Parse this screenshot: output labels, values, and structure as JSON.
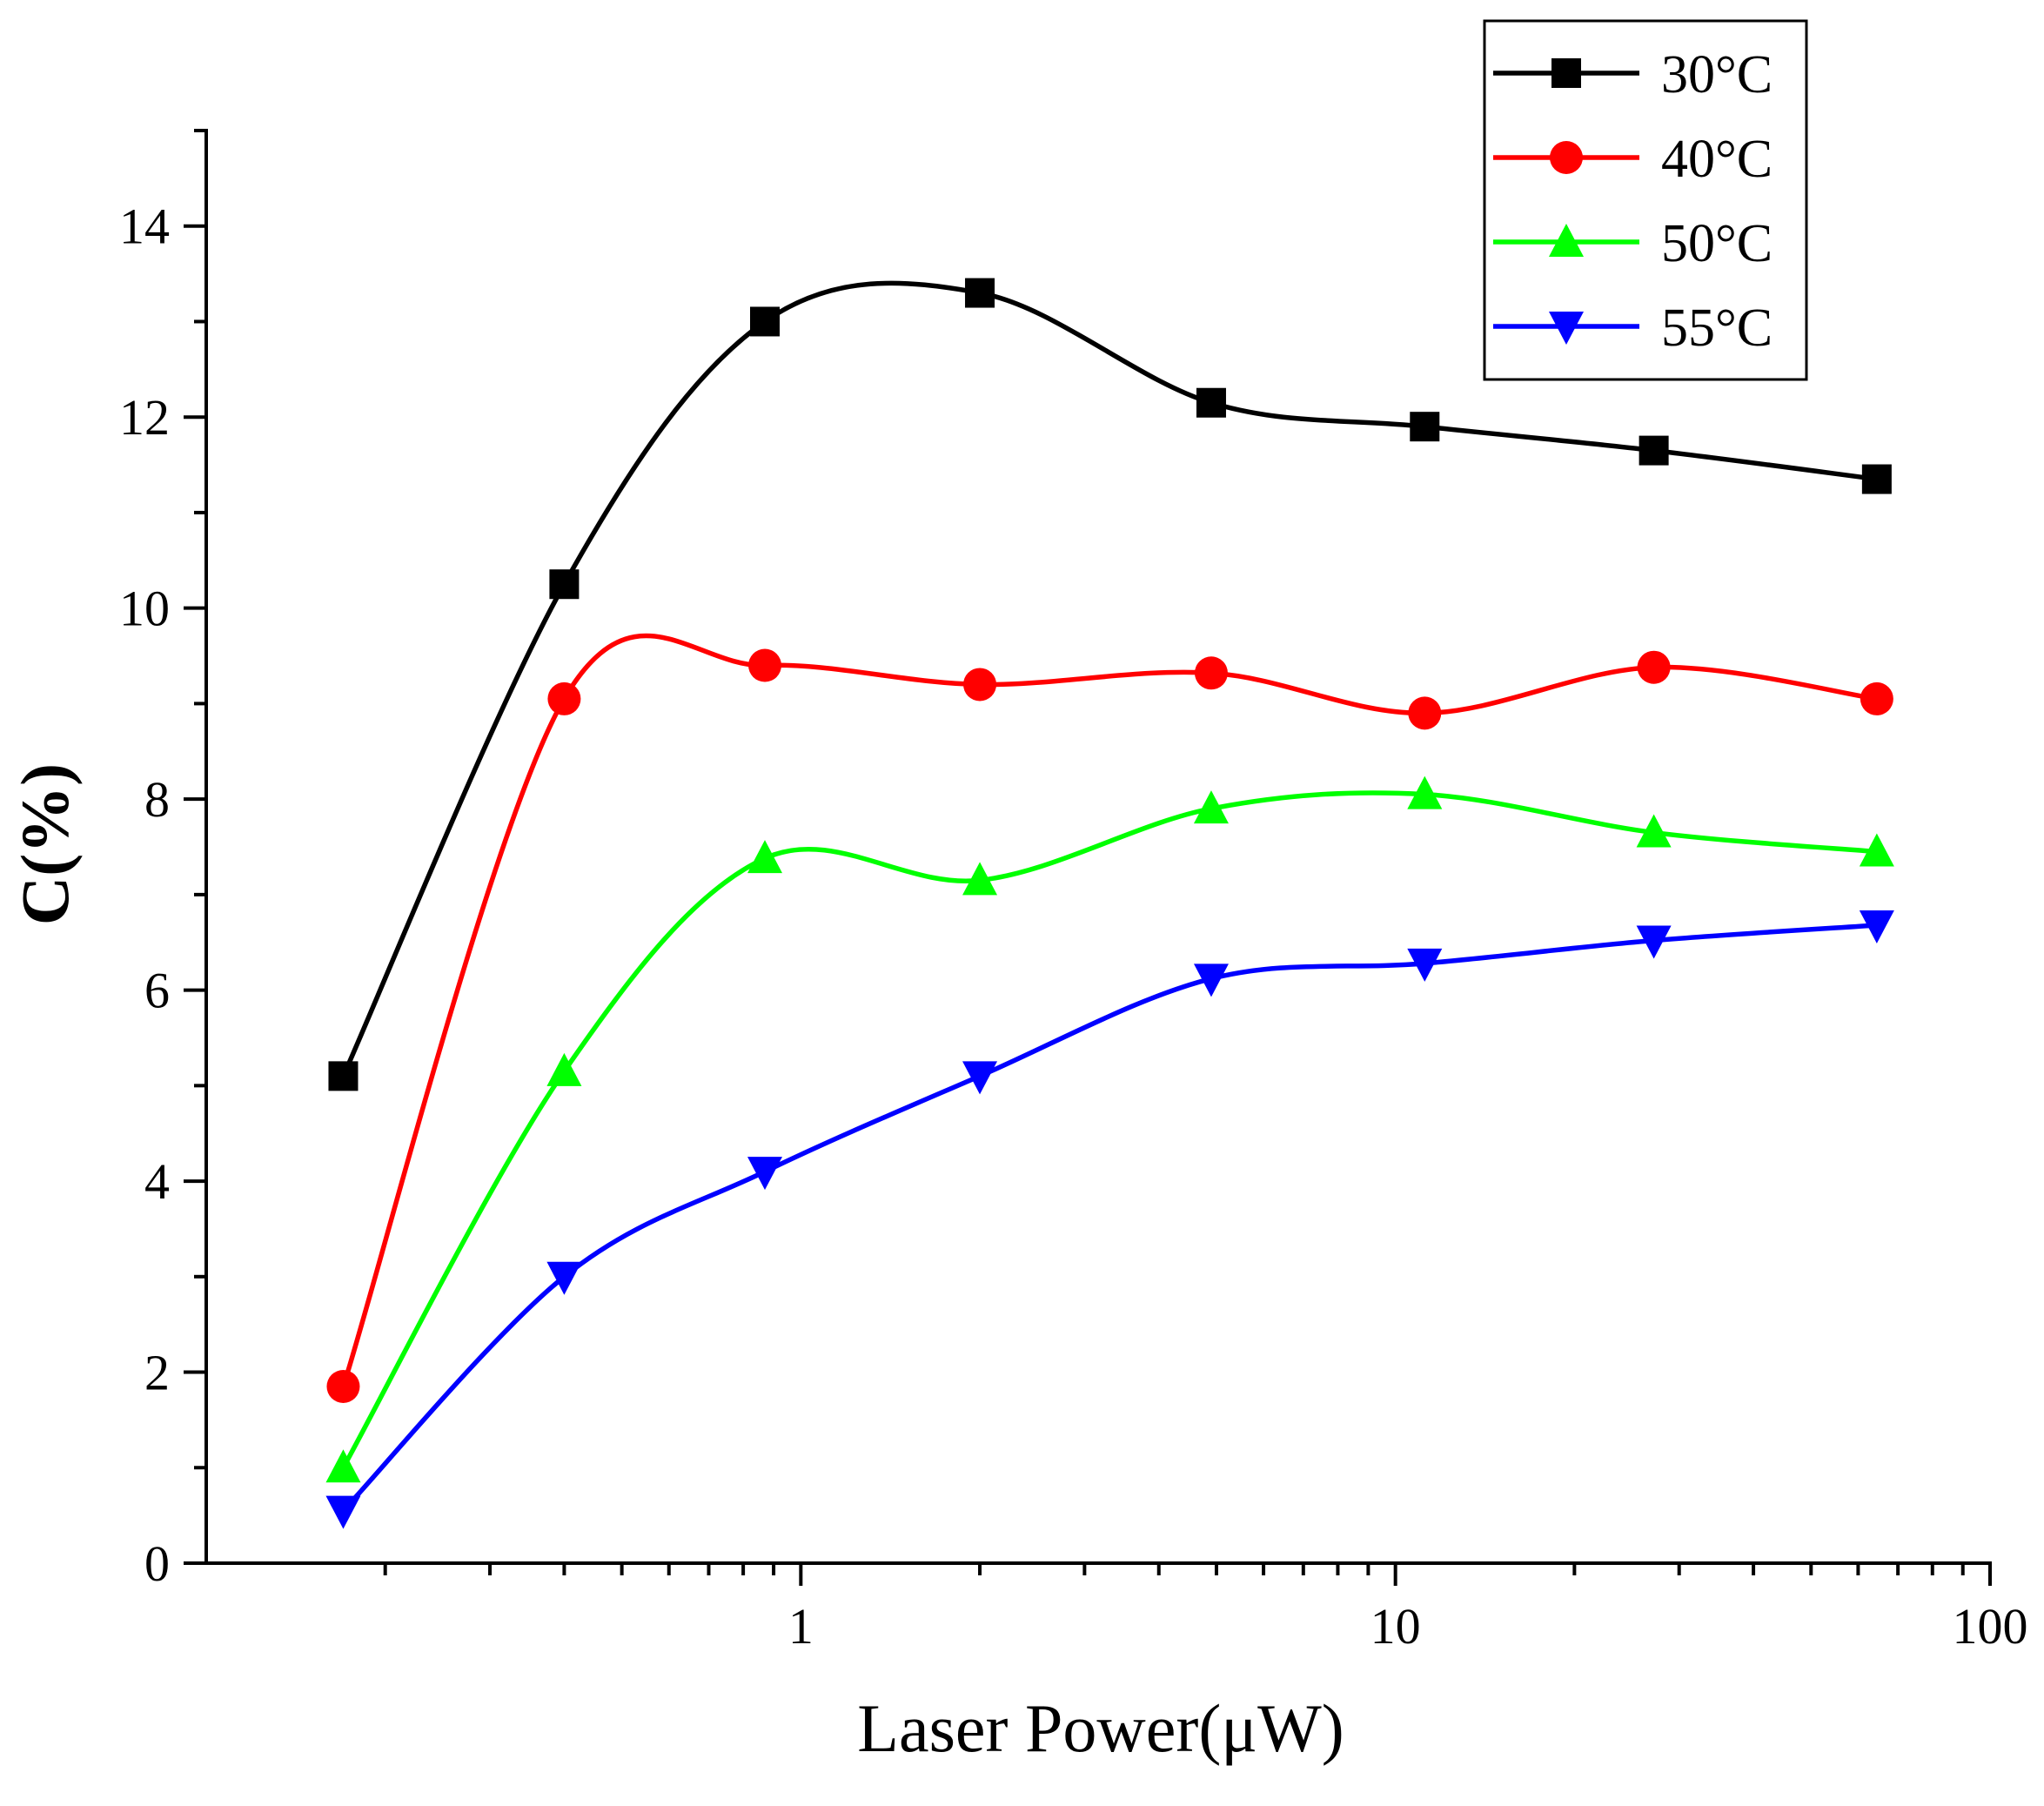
{
  "chart_data": {
    "type": "line",
    "xlabel": "Laser Power(μW)",
    "ylabel": "C(%)",
    "xscale": "log",
    "xlim": [
      0.1,
      100
    ],
    "ylim": [
      0,
      15
    ],
    "xticks": [
      1,
      10,
      100
    ],
    "xtick_labels": [
      "1",
      "10",
      "100"
    ],
    "yticks": [
      0,
      2,
      4,
      6,
      8,
      10,
      12,
      14
    ],
    "ytick_labels": [
      "0",
      "2",
      "4",
      "6",
      "8",
      "10",
      "12",
      "14"
    ],
    "grid": false,
    "legend_position": "top-right",
    "x": [
      0.17,
      0.4,
      0.87,
      2.0,
      4.9,
      11.2,
      27.2,
      64.5
    ],
    "series": [
      {
        "name": "30°C",
        "color": "#000000",
        "marker": "square",
        "values": [
          5.1,
          10.25,
          13.0,
          13.3,
          12.15,
          11.9,
          11.65,
          11.35
        ]
      },
      {
        "name": "40°C",
        "color": "#ff0000",
        "marker": "circle",
        "values": [
          1.85,
          9.05,
          9.4,
          9.2,
          9.32,
          8.9,
          9.38,
          9.05
        ]
      },
      {
        "name": "50°C",
        "color": "#00ff00",
        "marker": "triangle-up",
        "values": [
          1.0,
          5.15,
          7.38,
          7.15,
          7.9,
          8.05,
          7.65,
          7.45
        ]
      },
      {
        "name": "55°C",
        "color": "#0000ff",
        "marker": "triangle-down",
        "values": [
          0.55,
          3.0,
          4.1,
          5.1,
          6.12,
          6.28,
          6.52,
          6.68
        ]
      }
    ]
  }
}
